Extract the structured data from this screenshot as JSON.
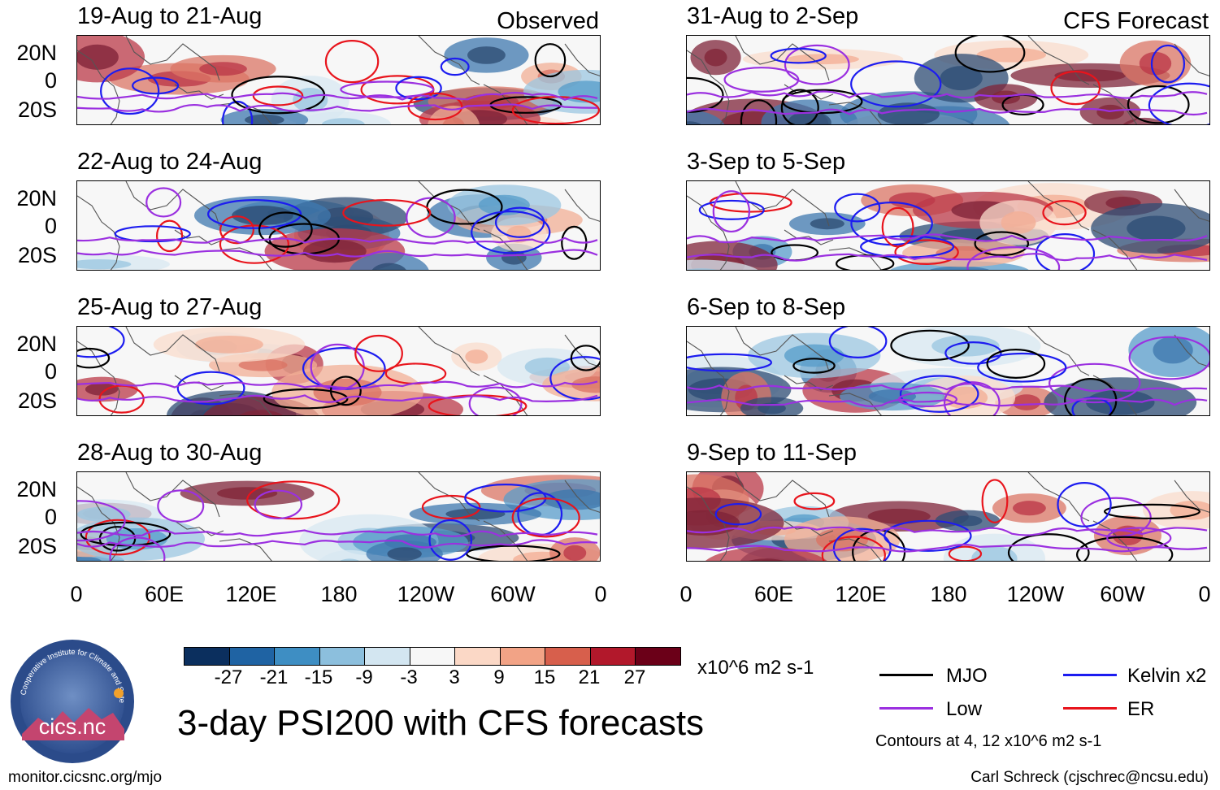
{
  "panels": [
    {
      "title": "19-Aug to 21-Aug",
      "tag": "Observed"
    },
    {
      "title": "22-Aug to 24-Aug",
      "tag": ""
    },
    {
      "title": "25-Aug to 27-Aug",
      "tag": ""
    },
    {
      "title": "28-Aug to 30-Aug",
      "tag": ""
    },
    {
      "title": "31-Aug to 2-Sep",
      "tag": "CFS Forecast"
    },
    {
      "title": "3-Sep to 5-Sep",
      "tag": ""
    },
    {
      "title": "6-Sep to 8-Sep",
      "tag": ""
    },
    {
      "title": "9-Sep to 11-Sep",
      "tag": ""
    }
  ],
  "lat_labels": [
    "20N",
    "0",
    "20S"
  ],
  "lon_labels": [
    "0",
    "60E",
    "120E",
    "180",
    "120W",
    "60W",
    "0"
  ],
  "colorbar": {
    "colors": [
      "#0b2f5e",
      "#1f63a3",
      "#3e8ec3",
      "#8cbfdd",
      "#d3e6f1",
      "#f7f7f7",
      "#fbd8c6",
      "#f2a386",
      "#d75f4c",
      "#b2182b",
      "#6b0018"
    ],
    "labels": [
      "-27",
      "-21",
      "-15",
      "-9",
      "-3",
      "3",
      "9",
      "15",
      "21",
      "27"
    ],
    "units": "x10^6 m2 s-1"
  },
  "main_title": "3-day PSI200 with CFS forecasts",
  "legend": {
    "items": [
      {
        "label": "MJO",
        "color": "#000000"
      },
      {
        "label": "Kelvin x2",
        "color": "#1c1cf0"
      },
      {
        "label": "Low",
        "color": "#9b30e0"
      },
      {
        "label": "ER",
        "color": "#e8141c"
      }
    ],
    "note": "Contours at 4, 12 x10^6 m2 s-1"
  },
  "logo": {
    "text": "cics.nc",
    "ring_text": "Cooperative Institute for Climate and Satellites"
  },
  "footer": {
    "left": "monitor.cicsnc.org/mjo",
    "right": "Carl Schreck (cjschrec@ncsu.edu)"
  }
}
